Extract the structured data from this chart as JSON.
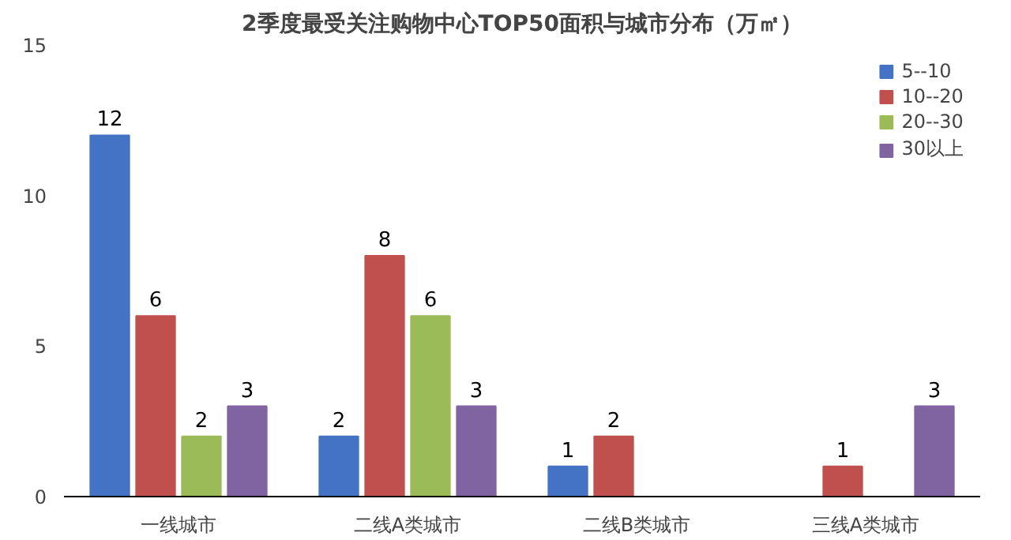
{
  "chart_data": {
    "type": "bar",
    "title": "2季度最受关注购物中心TOP50面积与城市分布（万㎡）",
    "categories": [
      "一线城市",
      "二线A类城市",
      "二线B类城市",
      "三线A类城市"
    ],
    "series": [
      {
        "name": "5--10",
        "color": "#4472c4",
        "values": [
          12,
          2,
          1,
          null
        ]
      },
      {
        "name": "10--20",
        "color": "#c0504d",
        "values": [
          6,
          8,
          2,
          1
        ]
      },
      {
        "name": "20--30",
        "color": "#9bbb59",
        "values": [
          2,
          6,
          null,
          null
        ]
      },
      {
        "name": "30以上",
        "color": "#8064a2",
        "values": [
          3,
          3,
          null,
          3
        ]
      }
    ],
    "ylim": [
      0,
      15
    ],
    "yticks": [
      0,
      5,
      10,
      15
    ],
    "grid": false,
    "legend": "top right",
    "data_labels": true
  }
}
